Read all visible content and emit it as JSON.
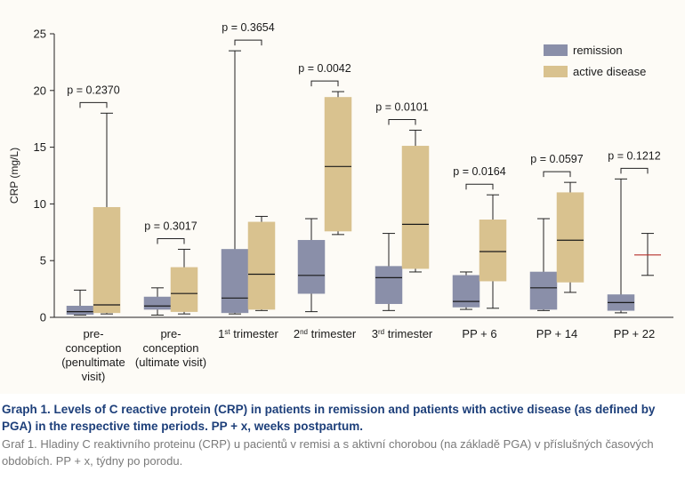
{
  "chart_data": {
    "type": "box",
    "ylabel": "CRP (mg/L)",
    "ylim": [
      0,
      25
    ],
    "yticks": [
      0,
      5,
      10,
      15,
      20,
      25
    ],
    "legend_position": "top-right",
    "grid": false,
    "categories": [
      [
        "pre-",
        "conception",
        "(penultimate",
        "visit)"
      ],
      [
        "pre-",
        "conception",
        "(ultimate visit)"
      ],
      [
        "1st trimester"
      ],
      [
        "2nd trimester"
      ],
      [
        "3rd trimester"
      ],
      [
        "PP + 6"
      ],
      [
        "PP + 14"
      ],
      [
        "PP + 22"
      ]
    ],
    "p_values": [
      "p = 0.2370",
      "p = 0.3017",
      "p = 0.3654",
      "p = 0.0042",
      "p = 0.0101",
      "p = 0.0164",
      "p = 0.0597",
      "p = 0.1212"
    ],
    "series": [
      {
        "name": "remission",
        "color": "#8a8fa9",
        "boxes": [
          {
            "min": 0.2,
            "q1": 0.25,
            "median": 0.5,
            "q3": 1.0,
            "max": 2.4
          },
          {
            "min": 0.2,
            "q1": 0.7,
            "median": 1.0,
            "q3": 1.8,
            "max": 2.6
          },
          {
            "min": 0.3,
            "q1": 0.4,
            "median": 1.7,
            "q3": 6.0,
            "max": 23.5
          },
          {
            "min": 0.5,
            "q1": 2.1,
            "median": 3.7,
            "q3": 6.8,
            "max": 8.7
          },
          {
            "min": 0.6,
            "q1": 1.2,
            "median": 3.5,
            "q3": 4.5,
            "max": 7.4
          },
          {
            "min": 0.7,
            "q1": 0.9,
            "median": 1.4,
            "q3": 3.7,
            "max": 4.0
          },
          {
            "min": 0.6,
            "q1": 0.7,
            "median": 2.6,
            "q3": 4.0,
            "max": 8.7
          },
          {
            "min": 0.4,
            "q1": 0.6,
            "median": 1.3,
            "q3": 2.0,
            "max": 12.2
          }
        ]
      },
      {
        "name": "active disease",
        "color": "#d9c28f",
        "boxes": [
          {
            "min": 0.3,
            "q1": 0.4,
            "median": 1.1,
            "q3": 9.7,
            "max": 18.0
          },
          {
            "min": 0.3,
            "q1": 0.5,
            "median": 2.1,
            "q3": 4.4,
            "max": 6.0
          },
          {
            "min": 0.6,
            "q1": 0.7,
            "median": 3.8,
            "q3": 8.4,
            "max": 8.9
          },
          {
            "min": 7.3,
            "q1": 7.6,
            "median": 13.3,
            "q3": 19.4,
            "max": 19.9
          },
          {
            "min": 4.0,
            "q1": 4.3,
            "median": 8.2,
            "q3": 15.1,
            "max": 16.5
          },
          {
            "min": 0.8,
            "q1": 3.2,
            "median": 5.8,
            "q3": 8.6,
            "max": 10.8
          },
          {
            "min": 2.2,
            "q1": 3.1,
            "median": 6.8,
            "q3": 11.0,
            "max": 11.9
          },
          {
            "min": 3.7,
            "q1": 5.5,
            "median": 5.5,
            "q3": 5.5,
            "max": 7.4
          }
        ]
      }
    ]
  },
  "caption": {
    "english": "Graph 1. Levels of C reactive protein (CRP) in patients in remission and patients with active disease (as defined by PGA) in the respective time periods. PP + x, weeks postpartum.",
    "czech": "Graf 1. Hladiny C reaktivního proteinu (CRP) u pacientů v remisi a s aktivní chorobou (na základě PGA) v příslušných časových obdobích. PP + x, týdny po porodu."
  }
}
